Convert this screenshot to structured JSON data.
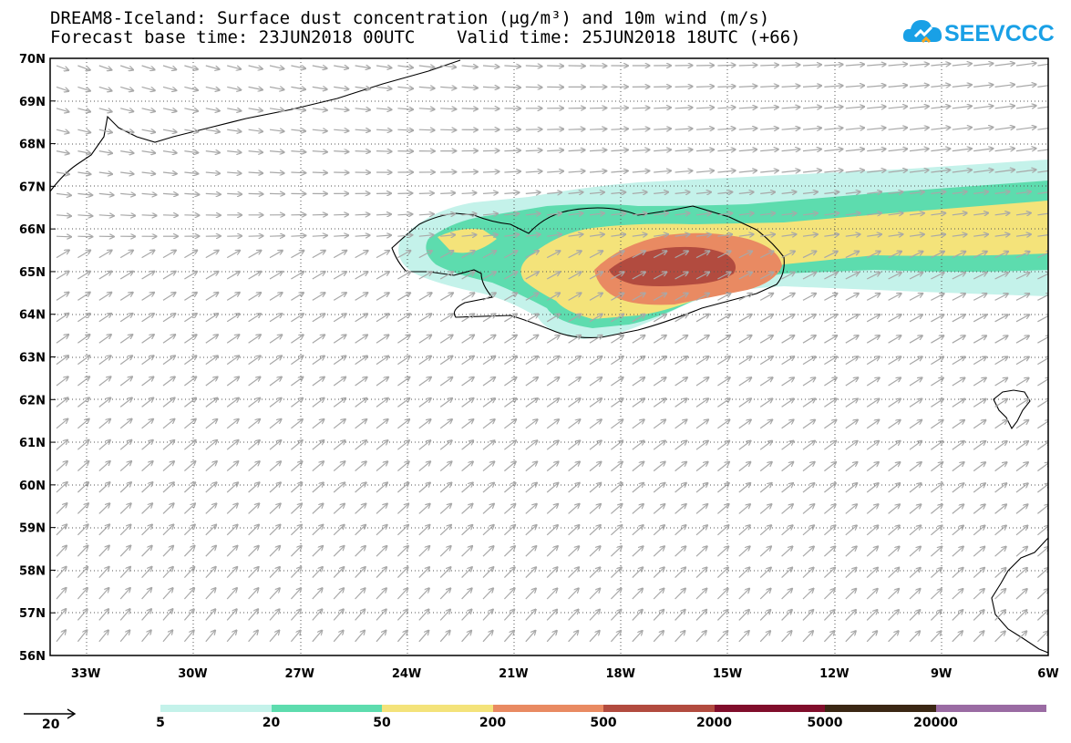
{
  "title_line1": "DREAM8-Iceland: Surface dust concentration (μg/m³) and 10m wind (m/s)",
  "title_line2": "Forecast base time: 23JUN2018 00UTC    Valid time: 25JUN2018 18UTC (+66)",
  "logo": {
    "text": "SEEVCCC",
    "icon": "cloud-icon",
    "color": "#19a0e6"
  },
  "map": {
    "lon_range": [
      -34,
      -6
    ],
    "lat_range": [
      56,
      70
    ],
    "lon_ticks": [
      "33W",
      "30W",
      "27W",
      "24W",
      "21W",
      "18W",
      "15W",
      "12W",
      "9W",
      "6W"
    ],
    "lat_ticks": [
      "70N",
      "69N",
      "68N",
      "67N",
      "66N",
      "65N",
      "64N",
      "63N",
      "62N",
      "61N",
      "60N",
      "59N",
      "58N",
      "57N",
      "56N"
    ],
    "wind_arrow_color": "#a8a8a8"
  },
  "legend": {
    "colors": [
      "#c4f2ea",
      "#5ddcae",
      "#f4e37a",
      "#e98a62",
      "#b24b3f",
      "#800d2b",
      "#3b2714",
      "#9a6ba3"
    ],
    "labels": [
      "5",
      "20",
      "50",
      "200",
      "500",
      "2000",
      "5000",
      "20000"
    ],
    "wind_ref_label": "20"
  }
}
